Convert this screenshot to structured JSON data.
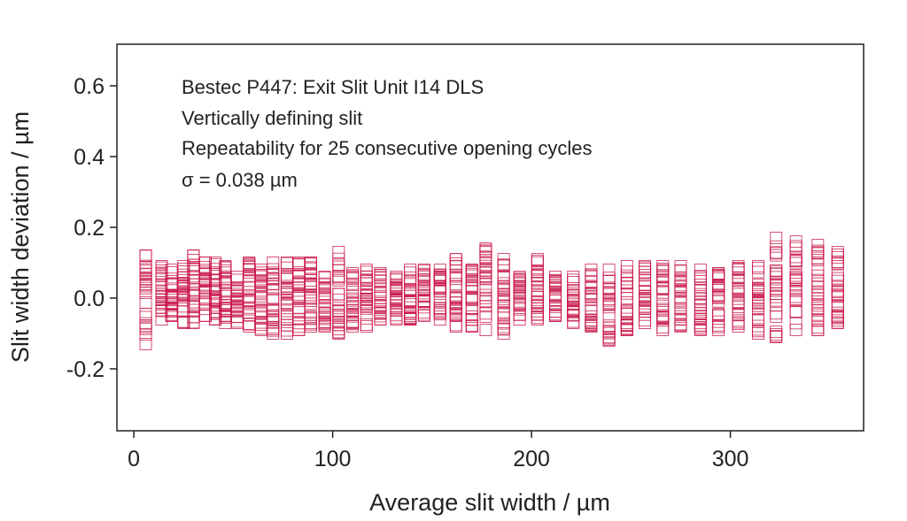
{
  "chart_data": {
    "type": "scatter",
    "annotations": [
      "Bestec P447: Exit Slit Unit I14 DLS",
      "Vertically defining slit",
      "Repeatability for 25 consecutive opening cycles",
      "σ = 0.038 µm"
    ],
    "xlabel": "Average slit width / µm",
    "ylabel": "Slit width deviation / µm",
    "xlim": [
      -8.5,
      367
    ],
    "ylim": [
      -0.375,
      0.7175
    ],
    "xticks": [
      0,
      100,
      200,
      300
    ],
    "xtick_labels": [
      "0",
      "100",
      "200",
      "300"
    ],
    "yticks": [
      0.6,
      0.4,
      0.2,
      0.0,
      -0.2
    ],
    "ytick_labels": [
      "0.6",
      "0.4",
      "0.2",
      "0.0",
      "-0.2"
    ],
    "grid": false,
    "marker": "open-square",
    "marker_color": "#c8184a",
    "points_per_column": 25,
    "columns": [
      {
        "x": 6,
        "range": [
          -0.13,
          0.12
        ]
      },
      {
        "x": 14,
        "range": [
          -0.06,
          0.09
        ]
      },
      {
        "x": 19,
        "range": [
          -0.05,
          0.08
        ]
      },
      {
        "x": 25,
        "range": [
          -0.07,
          0.09
        ]
      },
      {
        "x": 30,
        "range": [
          -0.07,
          0.12
        ]
      },
      {
        "x": 36,
        "range": [
          -0.05,
          0.1
        ]
      },
      {
        "x": 41,
        "range": [
          -0.06,
          0.1
        ]
      },
      {
        "x": 46,
        "range": [
          -0.07,
          0.09
        ]
      },
      {
        "x": 52,
        "range": [
          -0.07,
          0.06
        ]
      },
      {
        "x": 58,
        "range": [
          -0.08,
          0.1
        ]
      },
      {
        "x": 64,
        "range": [
          -0.09,
          0.08
        ]
      },
      {
        "x": 70,
        "range": [
          -0.1,
          0.1
        ]
      },
      {
        "x": 77,
        "range": [
          -0.1,
          0.1
        ]
      },
      {
        "x": 83,
        "range": [
          -0.09,
          0.1
        ]
      },
      {
        "x": 89,
        "range": [
          -0.08,
          0.1
        ]
      },
      {
        "x": 96,
        "range": [
          -0.08,
          0.06
        ]
      },
      {
        "x": 103,
        "range": [
          -0.1,
          0.13
        ]
      },
      {
        "x": 110,
        "range": [
          -0.08,
          0.07
        ]
      },
      {
        "x": 117,
        "range": [
          -0.08,
          0.08
        ]
      },
      {
        "x": 124,
        "range": [
          -0.06,
          0.07
        ]
      },
      {
        "x": 132,
        "range": [
          -0.06,
          0.06
        ]
      },
      {
        "x": 139,
        "range": [
          -0.06,
          0.08
        ]
      },
      {
        "x": 146,
        "range": [
          -0.05,
          0.08
        ]
      },
      {
        "x": 154,
        "range": [
          -0.06,
          0.08
        ]
      },
      {
        "x": 162,
        "range": [
          -0.08,
          0.11
        ]
      },
      {
        "x": 170,
        "range": [
          -0.08,
          0.08
        ]
      },
      {
        "x": 177,
        "range": [
          -0.09,
          0.14
        ]
      },
      {
        "x": 186,
        "range": [
          -0.1,
          0.11
        ]
      },
      {
        "x": 194,
        "range": [
          -0.06,
          0.06
        ]
      },
      {
        "x": 203,
        "range": [
          -0.06,
          0.11
        ]
      },
      {
        "x": 212,
        "range": [
          -0.05,
          0.06
        ]
      },
      {
        "x": 221,
        "range": [
          -0.07,
          0.06
        ]
      },
      {
        "x": 230,
        "range": [
          -0.08,
          0.08
        ]
      },
      {
        "x": 239,
        "range": [
          -0.12,
          0.08
        ]
      },
      {
        "x": 248,
        "range": [
          -0.09,
          0.09
        ]
      },
      {
        "x": 257,
        "range": [
          -0.07,
          0.09
        ]
      },
      {
        "x": 266,
        "range": [
          -0.09,
          0.09
        ]
      },
      {
        "x": 275,
        "range": [
          -0.08,
          0.09
        ]
      },
      {
        "x": 285,
        "range": [
          -0.09,
          0.08
        ]
      },
      {
        "x": 294,
        "range": [
          -0.09,
          0.07
        ]
      },
      {
        "x": 304,
        "range": [
          -0.08,
          0.09
        ]
      },
      {
        "x": 314,
        "range": [
          -0.1,
          0.09
        ]
      },
      {
        "x": 323,
        "range": [
          -0.11,
          0.17
        ]
      },
      {
        "x": 333,
        "range": [
          -0.09,
          0.16
        ]
      },
      {
        "x": 344,
        "range": [
          -0.09,
          0.15
        ]
      },
      {
        "x": 354,
        "range": [
          -0.07,
          0.13
        ]
      }
    ]
  }
}
